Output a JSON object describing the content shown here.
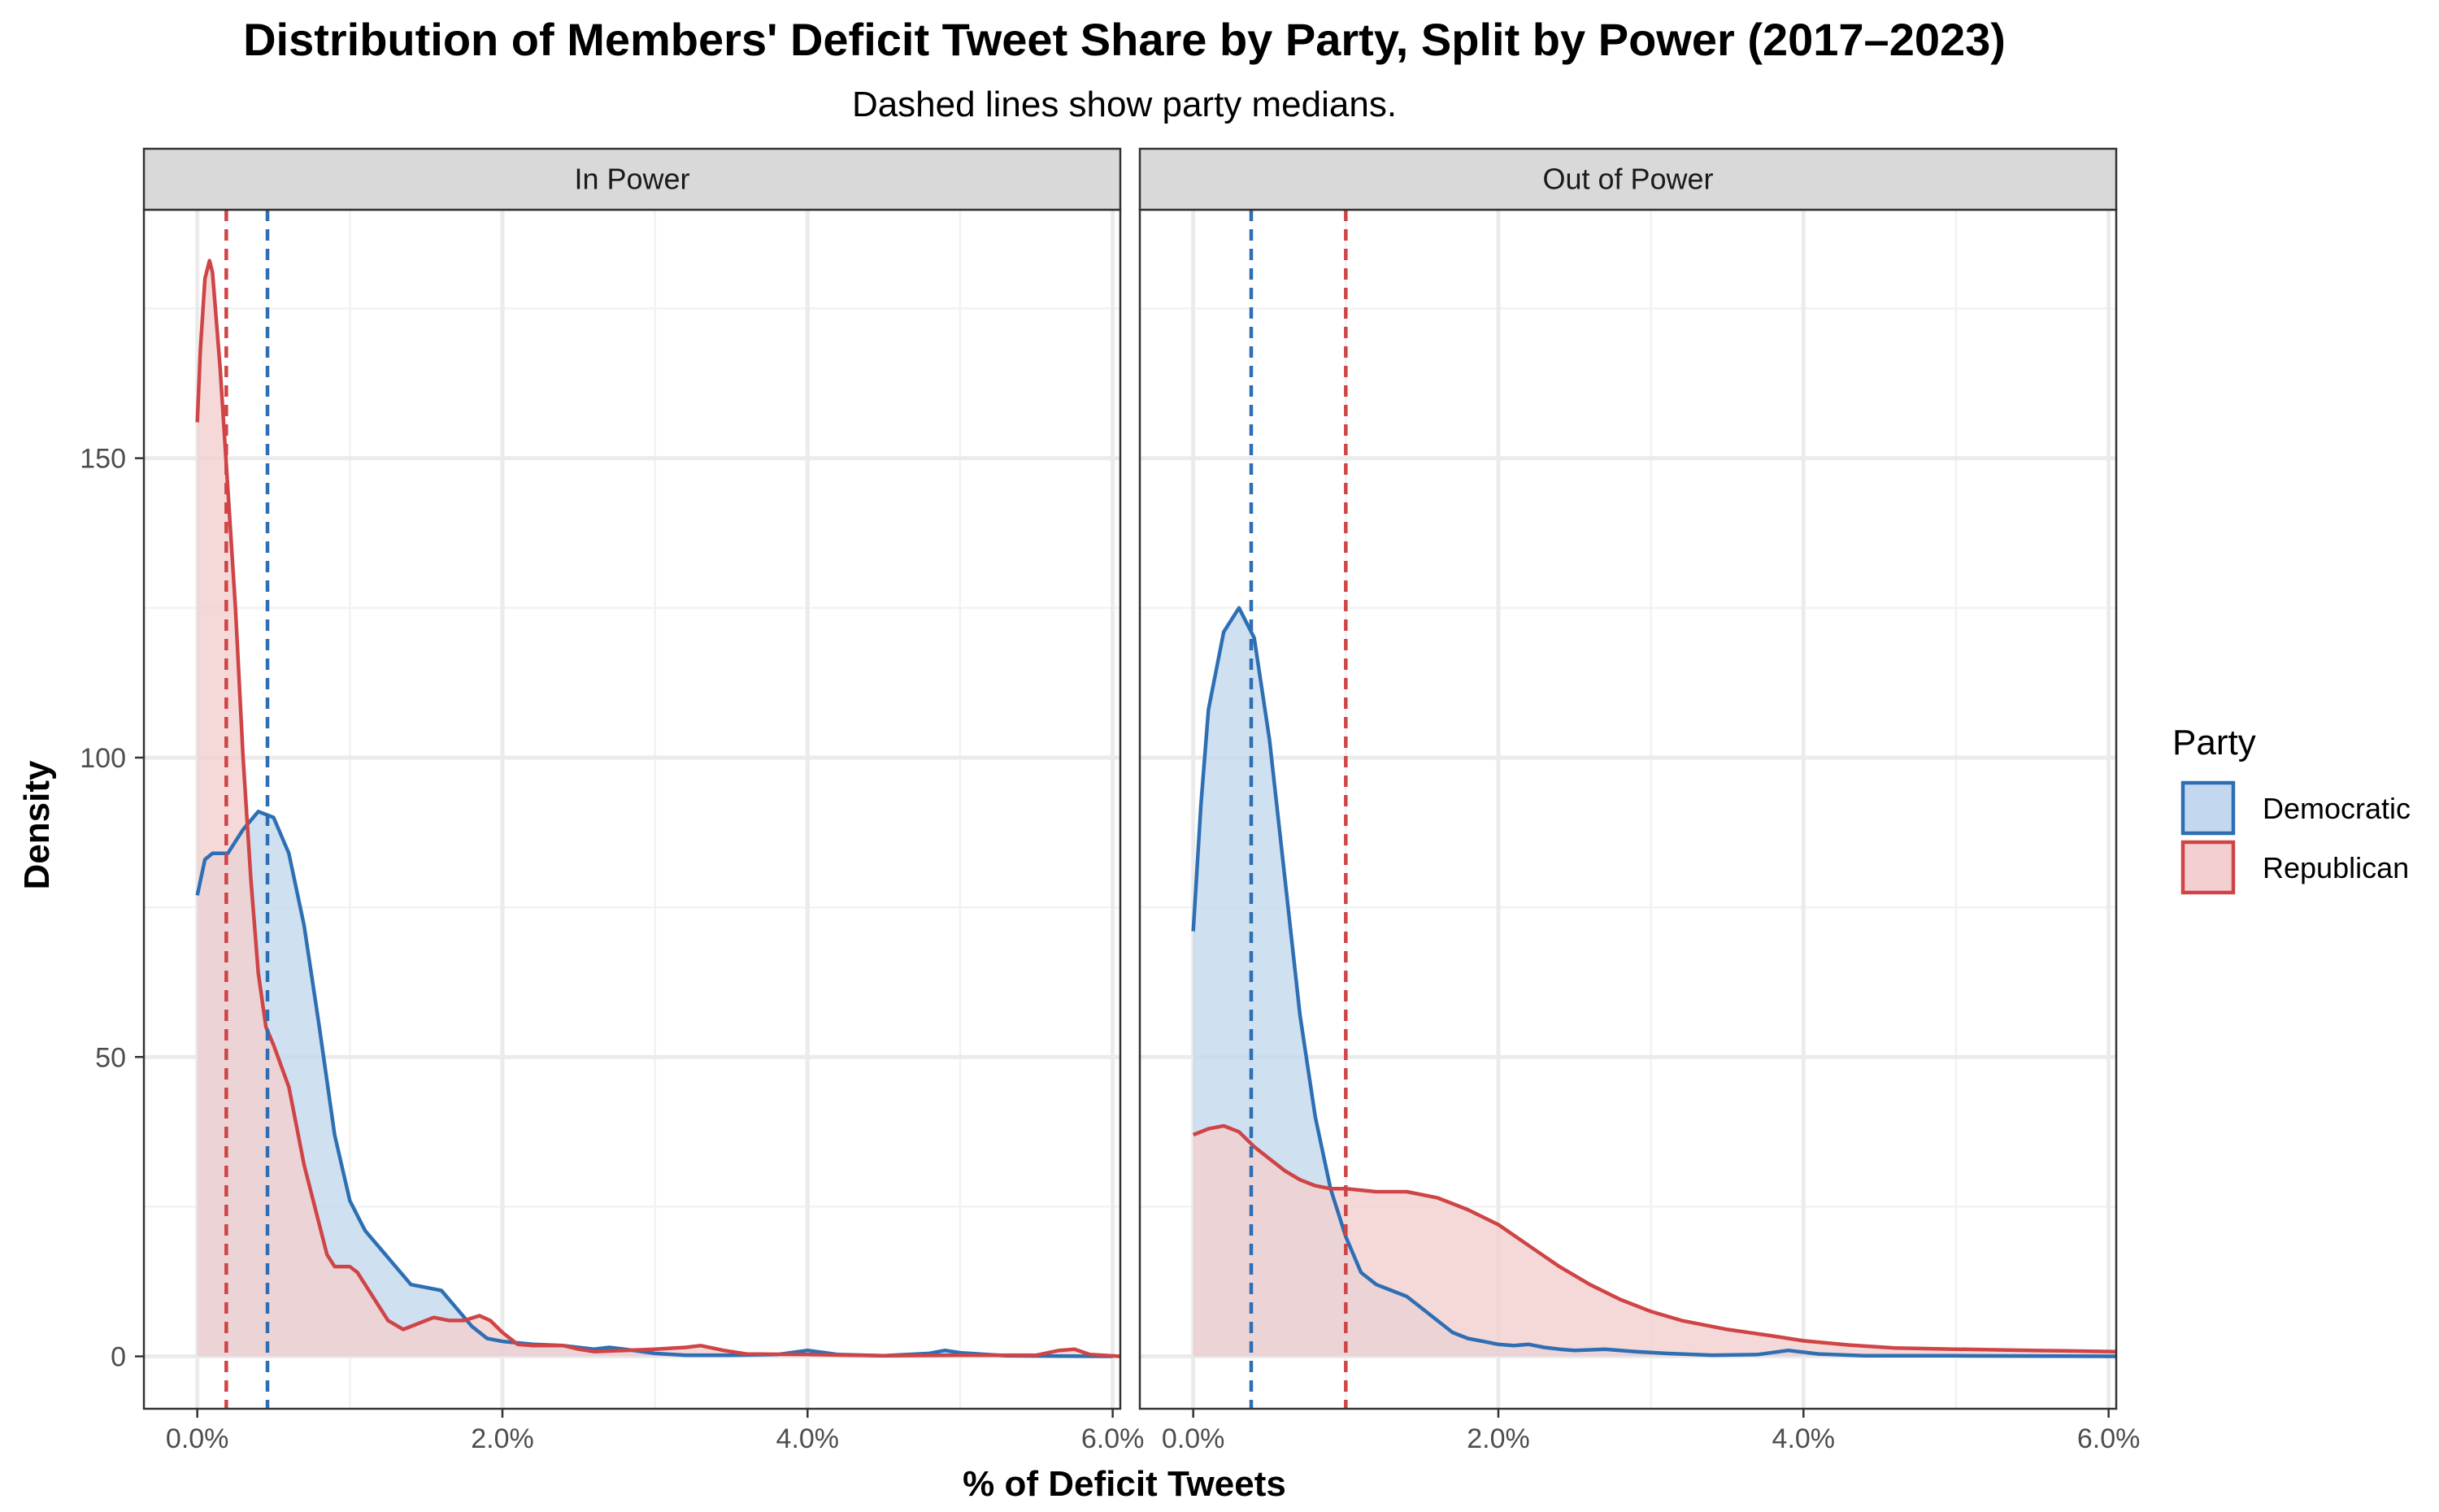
{
  "chart_data": {
    "type": "area",
    "title": "Distribution of Members' Deficit Tweet Share by Party, Split by Power (2017–2023)",
    "subtitle": "Dashed lines show party medians.",
    "xlabel": "% of Deficit Tweets",
    "ylabel": "Density",
    "xlim": [
      -0.35,
      6.05
    ],
    "ylim": [
      -8.75,
      191.5
    ],
    "x_ticks": [
      0,
      2,
      4,
      6
    ],
    "x_tick_labels": [
      "0.0%",
      "2.0%",
      "4.0%",
      "6.0%"
    ],
    "y_ticks": [
      0,
      50,
      100,
      150
    ],
    "y_tick_labels": [
      "0",
      "50",
      "100",
      "150"
    ],
    "grid": true,
    "legend": {
      "title": "Party",
      "position": "right",
      "entries": [
        {
          "label": "Democratic",
          "line_color": "#2e6fb4",
          "fill_color": "#c3d8ee"
        },
        {
          "label": "Republican",
          "line_color": "#cf4446",
          "fill_color": "#f3cfd0"
        }
      ]
    },
    "panels": [
      {
        "label": "In Power",
        "series": [
          {
            "name": "Democratic",
            "median": 0.46,
            "points": [
              [
                0,
                77
              ],
              [
                0.05,
                83
              ],
              [
                0.1,
                84
              ],
              [
                0.2,
                84
              ],
              [
                0.3,
                88
              ],
              [
                0.4,
                91
              ],
              [
                0.5,
                90
              ],
              [
                0.6,
                84
              ],
              [
                0.7,
                72
              ],
              [
                0.8,
                55
              ],
              [
                0.9,
                37
              ],
              [
                1.0,
                26
              ],
              [
                1.1,
                21
              ],
              [
                1.2,
                18
              ],
              [
                1.3,
                15
              ],
              [
                1.4,
                12
              ],
              [
                1.5,
                11.5
              ],
              [
                1.6,
                11
              ],
              [
                1.7,
                8
              ],
              [
                1.8,
                5
              ],
              [
                1.9,
                3
              ],
              [
                2.0,
                2.5
              ],
              [
                2.2,
                2
              ],
              [
                2.4,
                1.8
              ],
              [
                2.6,
                1.2
              ],
              [
                2.7,
                1.5
              ],
              [
                2.8,
                1.2
              ],
              [
                3.0,
                0.5
              ],
              [
                3.2,
                0.2
              ],
              [
                3.5,
                0.2
              ],
              [
                3.8,
                0.3
              ],
              [
                4.0,
                1
              ],
              [
                4.2,
                0.3
              ],
              [
                4.5,
                0.1
              ],
              [
                4.8,
                0.5
              ],
              [
                4.9,
                1
              ],
              [
                5.0,
                0.6
              ],
              [
                5.3,
                0.1
              ],
              [
                6.0,
                0
              ]
            ]
          },
          {
            "name": "Republican",
            "median": 0.19,
            "points": [
              [
                0,
                156
              ],
              [
                0.02,
                168
              ],
              [
                0.05,
                180
              ],
              [
                0.08,
                183
              ],
              [
                0.1,
                181
              ],
              [
                0.15,
                165
              ],
              [
                0.2,
                145
              ],
              [
                0.25,
                125
              ],
              [
                0.3,
                100
              ],
              [
                0.35,
                80
              ],
              [
                0.4,
                64
              ],
              [
                0.45,
                55
              ],
              [
                0.5,
                52
              ],
              [
                0.6,
                45
              ],
              [
                0.7,
                32
              ],
              [
                0.8,
                22
              ],
              [
                0.85,
                17
              ],
              [
                0.9,
                15
              ],
              [
                1.0,
                15
              ],
              [
                1.05,
                14
              ],
              [
                1.15,
                10
              ],
              [
                1.25,
                6
              ],
              [
                1.35,
                4.5
              ],
              [
                1.45,
                5.5
              ],
              [
                1.55,
                6.5
              ],
              [
                1.65,
                6
              ],
              [
                1.75,
                6
              ],
              [
                1.85,
                6.8
              ],
              [
                1.92,
                6
              ],
              [
                2.0,
                4
              ],
              [
                2.1,
                2
              ],
              [
                2.2,
                1.8
              ],
              [
                2.4,
                1.8
              ],
              [
                2.5,
                1.2
              ],
              [
                2.6,
                0.8
              ],
              [
                2.8,
                1
              ],
              [
                3.0,
                1.2
              ],
              [
                3.2,
                1.5
              ],
              [
                3.3,
                1.8
              ],
              [
                3.45,
                1
              ],
              [
                3.6,
                0.4
              ],
              [
                4.0,
                0.3
              ],
              [
                4.5,
                0.1
              ],
              [
                5.0,
                0.2
              ],
              [
                5.5,
                0.2
              ],
              [
                5.65,
                1
              ],
              [
                5.75,
                1.2
              ],
              [
                5.85,
                0.3
              ],
              [
                6.05,
                0
              ]
            ]
          }
        ]
      },
      {
        "label": "Out of Power",
        "series": [
          {
            "name": "Democratic",
            "median": 0.38,
            "points": [
              [
                0,
                71
              ],
              [
                0.05,
                92
              ],
              [
                0.1,
                108
              ],
              [
                0.2,
                121
              ],
              [
                0.3,
                125
              ],
              [
                0.4,
                120
              ],
              [
                0.5,
                103
              ],
              [
                0.6,
                80
              ],
              [
                0.7,
                57
              ],
              [
                0.8,
                40
              ],
              [
                0.9,
                28
              ],
              [
                1.0,
                20
              ],
              [
                1.1,
                14
              ],
              [
                1.2,
                12
              ],
              [
                1.3,
                11
              ],
              [
                1.4,
                10
              ],
              [
                1.5,
                8
              ],
              [
                1.6,
                6
              ],
              [
                1.7,
                4
              ],
              [
                1.8,
                3
              ],
              [
                1.9,
                2.5
              ],
              [
                2.0,
                2
              ],
              [
                2.1,
                1.8
              ],
              [
                2.2,
                2
              ],
              [
                2.3,
                1.5
              ],
              [
                2.4,
                1.2
              ],
              [
                2.5,
                1
              ],
              [
                2.7,
                1.2
              ],
              [
                2.9,
                0.8
              ],
              [
                3.1,
                0.5
              ],
              [
                3.4,
                0.2
              ],
              [
                3.7,
                0.3
              ],
              [
                3.9,
                1
              ],
              [
                4.1,
                0.4
              ],
              [
                4.4,
                0.1
              ],
              [
                5.0,
                0.1
              ],
              [
                6.05,
                0
              ]
            ]
          },
          {
            "name": "Republican",
            "median": 1.0,
            "points": [
              [
                0,
                37
              ],
              [
                0.1,
                38
              ],
              [
                0.2,
                38.5
              ],
              [
                0.3,
                37.5
              ],
              [
                0.4,
                35
              ],
              [
                0.5,
                33
              ],
              [
                0.6,
                31
              ],
              [
                0.7,
                29.5
              ],
              [
                0.8,
                28.5
              ],
              [
                0.9,
                28
              ],
              [
                1.0,
                28
              ],
              [
                1.2,
                27.5
              ],
              [
                1.4,
                27.5
              ],
              [
                1.6,
                26.5
              ],
              [
                1.8,
                24.5
              ],
              [
                2.0,
                22
              ],
              [
                2.2,
                18.5
              ],
              [
                2.4,
                15
              ],
              [
                2.6,
                12
              ],
              [
                2.8,
                9.5
              ],
              [
                3.0,
                7.5
              ],
              [
                3.2,
                6
              ],
              [
                3.5,
                4.5
              ],
              [
                3.8,
                3.4
              ],
              [
                4.0,
                2.6
              ],
              [
                4.3,
                1.9
              ],
              [
                4.6,
                1.4
              ],
              [
                5.0,
                1.2
              ],
              [
                5.5,
                1
              ],
              [
                6.05,
                0.8
              ]
            ]
          }
        ]
      }
    ]
  }
}
